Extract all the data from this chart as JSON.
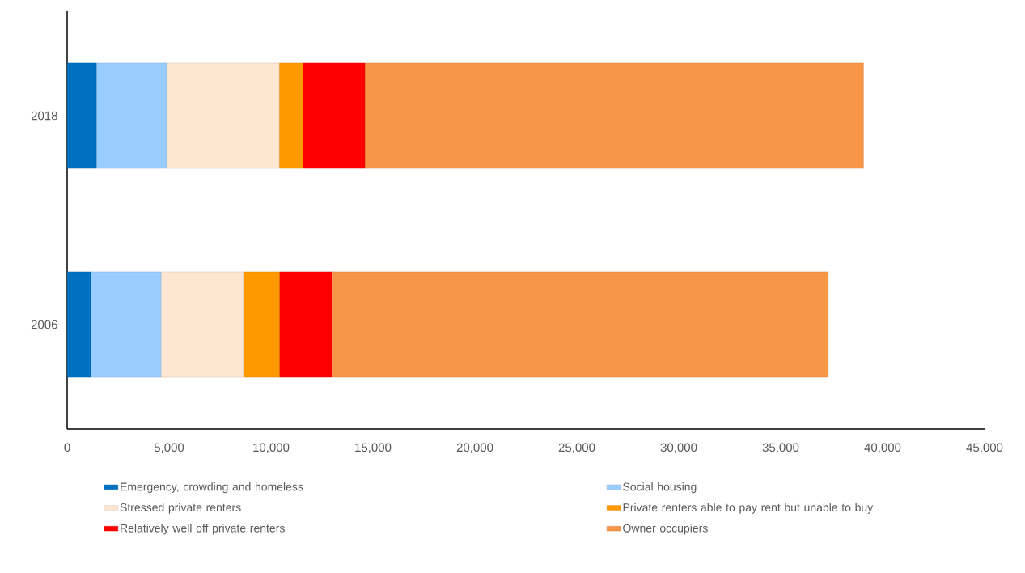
{
  "chart_data": {
    "type": "bar",
    "orientation": "horizontal",
    "stacked": true,
    "categories": [
      "2018",
      "2006"
    ],
    "series": [
      {
        "name": "Emergency, crowding and homeless",
        "color": "#0070c0",
        "values": [
          1430,
          1160
        ]
      },
      {
        "name": "Social housing",
        "color": "#99ccff",
        "values": [
          3450,
          3440
        ]
      },
      {
        "name": "Stressed private renters",
        "color": "#fde6d2",
        "values": [
          5520,
          4040
        ]
      },
      {
        "name": "Private renters able to pay rent but unable to buy",
        "color": "#ff9900",
        "values": [
          1160,
          1770
        ]
      },
      {
        "name": "Relatively well off private renters",
        "color": "#ff0000",
        "values": [
          3040,
          2570
        ]
      },
      {
        "name": "Owner occupiers",
        "color": "#f79646",
        "values": [
          24460,
          24350
        ]
      }
    ],
    "xlim": [
      0,
      45000
    ],
    "xticks": [
      0,
      {
        "value": 5000,
        "label": "5,000"
      },
      {
        "value": 10000,
        "label": "10,000"
      },
      {
        "value": 15000,
        "label": "15,000"
      },
      {
        "value": 20000,
        "label": "20,000"
      },
      {
        "value": 25000,
        "label": "25,000"
      },
      {
        "value": 30000,
        "label": "30,000"
      },
      {
        "value": 35000,
        "label": "35,000"
      },
      {
        "value": 40000,
        "label": "40,000"
      },
      {
        "value": 45000,
        "label": "45,000"
      }
    ],
    "legend": "bottom"
  }
}
